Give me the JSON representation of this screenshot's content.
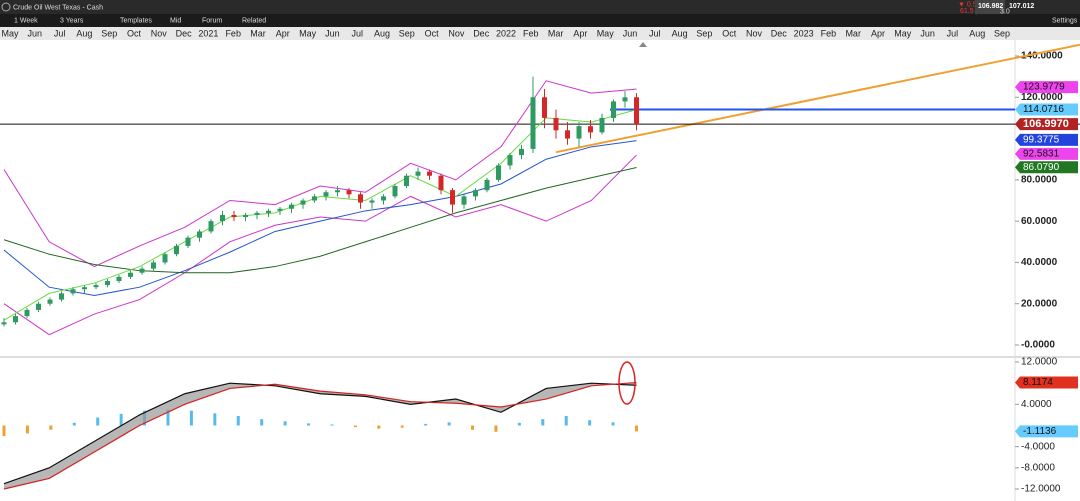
{
  "window": {
    "title": "Crude Oil West Texas - Cash"
  },
  "toolbar": {
    "interval": "1 Week",
    "range": "3 Years",
    "templates": "Templates",
    "mid": "Mid",
    "forum": "Forum",
    "related": "Related",
    "settings": "Settings"
  },
  "quote": {
    "change": "▼ 0.57%",
    "points": "61.5 pts",
    "bid": "106.982",
    "ask": "107.012",
    "spread": "3.0"
  },
  "time_axis": {
    "labels": [
      "May",
      "Jun",
      "Jul",
      "Aug",
      "Sep",
      "Oct",
      "Nov",
      "Dec",
      "2021",
      "Feb",
      "Mar",
      "Apr",
      "May",
      "Jun",
      "Jul",
      "Aug",
      "Sep",
      "Oct",
      "Nov",
      "Dec",
      "2022",
      "Feb",
      "Mar",
      "Apr",
      "May",
      "Jun",
      "Jul",
      "Aug",
      "Sep",
      "Oct",
      "Nov",
      "Dec",
      "2023",
      "Feb",
      "Mar",
      "Apr",
      "May",
      "Jun",
      "Jul",
      "Aug",
      "Sep"
    ]
  },
  "price_chart": {
    "ylim": [
      -6,
      145
    ],
    "yticks": [
      {
        "value": 140,
        "label": "140.0000"
      },
      {
        "value": 120,
        "label": "120.0000"
      },
      {
        "value": 80,
        "label": "80.0000"
      },
      {
        "value": 60,
        "label": "60.0000"
      },
      {
        "value": 40,
        "label": "40.0000"
      },
      {
        "value": 20,
        "label": "20.0000"
      },
      {
        "value": 0,
        "label": "-0.0000"
      }
    ],
    "candles": [
      [
        10,
        13,
        9,
        11
      ],
      [
        11,
        15,
        10,
        14
      ],
      [
        14,
        18,
        13,
        17
      ],
      [
        17,
        21,
        16,
        20
      ],
      [
        20,
        23,
        19,
        22
      ],
      [
        22,
        26,
        21,
        25
      ],
      [
        25,
        28,
        24,
        27
      ],
      [
        27,
        29,
        25,
        28
      ],
      [
        28,
        30,
        27,
        29
      ],
      [
        29,
        32,
        28,
        31
      ],
      [
        31,
        34,
        30,
        33
      ],
      [
        33,
        36,
        32,
        35
      ],
      [
        35,
        38,
        34,
        37
      ],
      [
        37,
        41,
        36,
        40
      ],
      [
        40,
        45,
        39,
        44
      ],
      [
        44,
        49,
        43,
        48
      ],
      [
        48,
        53,
        47,
        52
      ],
      [
        52,
        56,
        50,
        55
      ],
      [
        55,
        61,
        54,
        60
      ],
      [
        60,
        65,
        58,
        63
      ],
      [
        63,
        65,
        60,
        62
      ],
      [
        62,
        64,
        60,
        63
      ],
      [
        63,
        65,
        61,
        64
      ],
      [
        64,
        66,
        62,
        65
      ],
      [
        65,
        67,
        63,
        66
      ],
      [
        66,
        69,
        64,
        68
      ],
      [
        68,
        71,
        66,
        70
      ],
      [
        70,
        73,
        69,
        72
      ],
      [
        72,
        75,
        70,
        74
      ],
      [
        74,
        77,
        72,
        75
      ],
      [
        75,
        76,
        71,
        73
      ],
      [
        73,
        74,
        66,
        69
      ],
      [
        69,
        71,
        66,
        70
      ],
      [
        70,
        73,
        68,
        72
      ],
      [
        72,
        78,
        71,
        77
      ],
      [
        77,
        83,
        76,
        82
      ],
      [
        82,
        86,
        80,
        84
      ],
      [
        84,
        85,
        80,
        82
      ],
      [
        82,
        83,
        73,
        75
      ],
      [
        75,
        76,
        64,
        68
      ],
      [
        68,
        73,
        66,
        72
      ],
      [
        72,
        76,
        70,
        75
      ],
      [
        75,
        81,
        74,
        80
      ],
      [
        80,
        88,
        79,
        87
      ],
      [
        87,
        93,
        85,
        92
      ],
      [
        92,
        97,
        90,
        95
      ],
      [
        95,
        130,
        93,
        120
      ],
      [
        120,
        124,
        105,
        110
      ],
      [
        110,
        114,
        100,
        104
      ],
      [
        104,
        108,
        97,
        100
      ],
      [
        100,
        108,
        96,
        106
      ],
      [
        106,
        109,
        100,
        103
      ],
      [
        103,
        112,
        102,
        110
      ],
      [
        110,
        119,
        108,
        118
      ],
      [
        118,
        123,
        115,
        120
      ],
      [
        120,
        122,
        104,
        107
      ]
    ],
    "lines": [
      {
        "color": "#cc33cc",
        "values": [
          85,
          50,
          38,
          48,
          57,
          70,
          68,
          77,
          74,
          88,
          80,
          96,
          128,
          122,
          124
        ]
      },
      {
        "color": "#cc33cc",
        "values": [
          20,
          5,
          15,
          22,
          35,
          50,
          58,
          62,
          60,
          72,
          62,
          68,
          60,
          70,
          92
        ]
      },
      {
        "color": "#2255cc",
        "values": [
          46,
          28,
          24,
          28,
          36,
          45,
          55,
          60,
          65,
          68,
          72,
          78,
          90,
          96,
          99
        ]
      },
      {
        "color": "#226622",
        "values": [
          51,
          44,
          39,
          36,
          35,
          35,
          38,
          43,
          50,
          57,
          64,
          70,
          76,
          81,
          86
        ]
      },
      {
        "color": "#66dd44",
        "values": [
          12,
          25,
          30,
          38,
          50,
          62,
          64,
          72,
          70,
          82,
          72,
          88,
          110,
          108,
          114
        ]
      }
    ],
    "trendline": {
      "color": "#f0a030",
      "values": [
        93.4,
        139
      ]
    },
    "levels": [
      {
        "value": 123.9779,
        "label": "123.9779",
        "color": "#ee44ee"
      },
      {
        "value": 114.0716,
        "label": "114.0716",
        "color": "#66ccff"
      },
      {
        "value": 106.997,
        "label": "106.9970",
        "color": "#b22222"
      },
      {
        "value": 99.3775,
        "label": "99.3775",
        "color": "#2244dd"
      },
      {
        "value": 92.5831,
        "label": "92.5831",
        "color": "#ee44ee"
      },
      {
        "value": 86.079,
        "label": "86.0790",
        "color": "#227722"
      }
    ]
  },
  "macd_chart": {
    "ylim": [
      -13,
      13
    ],
    "yticks": [
      {
        "value": 12,
        "label": "12.0000"
      },
      {
        "value": 4,
        "label": "4.0000"
      },
      {
        "value": -4,
        "label": "-4.0000"
      },
      {
        "value": -8,
        "label": "-8.0000"
      },
      {
        "value": -12,
        "label": "-12.0000"
      }
    ],
    "macd": [
      -11,
      -8,
      -3,
      2,
      6,
      8,
      7.5,
      6,
      5.5,
      4,
      5,
      2.5,
      7,
      8,
      7.6
    ],
    "signal": [
      -12,
      -10,
      -5,
      0,
      4,
      7,
      7.8,
      6.5,
      5.8,
      4.5,
      4.2,
      3.5,
      5,
      7.5,
      8.1174
    ],
    "histogram": [
      -2,
      -1.5,
      -0.8,
      0.5,
      1.5,
      2.2,
      2.8,
      3,
      2.8,
      2.3,
      1.8,
      1.2,
      0.8,
      0.4,
      0.2,
      -0.3,
      -0.6,
      -0.4,
      0.3,
      0.6,
      -0.8,
      -1.2,
      0.5,
      1.2,
      1.8,
      1,
      0.6,
      -1.1136
    ],
    "levels": [
      {
        "value": 8.1174,
        "label": "8.1174",
        "color": "#e03020"
      },
      {
        "value": -1.1136,
        "label": "-1.1136",
        "color": "#66ccff"
      }
    ]
  }
}
